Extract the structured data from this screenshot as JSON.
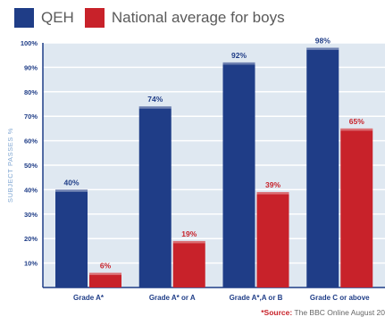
{
  "legend": {
    "items": [
      {
        "label": "QEH",
        "color": "#1f3d87"
      },
      {
        "label": "National average for boys",
        "color": "#c8222a"
      }
    ]
  },
  "chart_data": {
    "type": "bar",
    "categories": [
      "Grade A*",
      "Grade A* or A",
      "Grade A*,A or B",
      "Grade C or above"
    ],
    "series": [
      {
        "name": "QEH",
        "values": [
          40,
          74,
          92,
          98
        ],
        "color": "#1f3d87"
      },
      {
        "name": "National average for boys",
        "values": [
          6,
          19,
          39,
          65
        ],
        "color": "#c8222a"
      }
    ],
    "value_labels": [
      [
        "40%",
        "74%",
        "92%",
        "98%"
      ],
      [
        "6%",
        "19%",
        "39%",
        "65%"
      ]
    ],
    "ylabel": "SUBJECT PASSES %",
    "yticks": [
      "10%",
      "20%",
      "30%",
      "40%",
      "50%",
      "60%",
      "70%",
      "80%",
      "90%",
      "100%"
    ],
    "ylim": [
      0,
      100
    ],
    "grid": true,
    "plot_background": "#dfe8f1",
    "legend_position": "top-left"
  },
  "source": {
    "label": "*Source:",
    "text": "The BBC Online August 20"
  }
}
